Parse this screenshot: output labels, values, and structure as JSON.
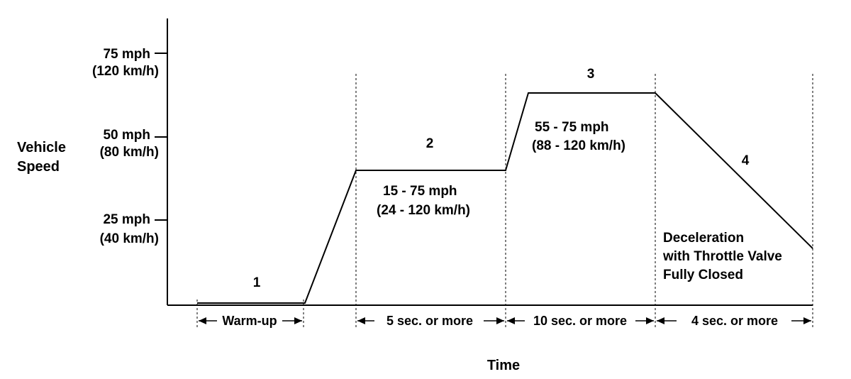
{
  "axes": {
    "y_title": [
      "Vehicle",
      "Speed"
    ],
    "x_title": "Time",
    "y_ticks": [
      {
        "mph": "75 mph",
        "kmh": "(120 km/h)"
      },
      {
        "mph": "50 mph",
        "kmh": "(80 km/h)"
      },
      {
        "mph": "25 mph",
        "kmh": "(40 km/h)"
      }
    ]
  },
  "phases": [
    {
      "number": "1",
      "duration": "Warm-up"
    },
    {
      "number": "2",
      "range": [
        "15 - 75 mph",
        "(24 - 120 km/h)"
      ],
      "duration": "5 sec. or  more"
    },
    {
      "number": "3",
      "range": [
        "55 - 75 mph",
        "(88 - 120 km/h)"
      ],
      "duration": "10 sec. or  more"
    },
    {
      "number": "4",
      "note": [
        "Deceleration",
        "with Throttle Valve",
        "Fully Closed"
      ],
      "duration": "4 sec. or  more"
    }
  ]
}
